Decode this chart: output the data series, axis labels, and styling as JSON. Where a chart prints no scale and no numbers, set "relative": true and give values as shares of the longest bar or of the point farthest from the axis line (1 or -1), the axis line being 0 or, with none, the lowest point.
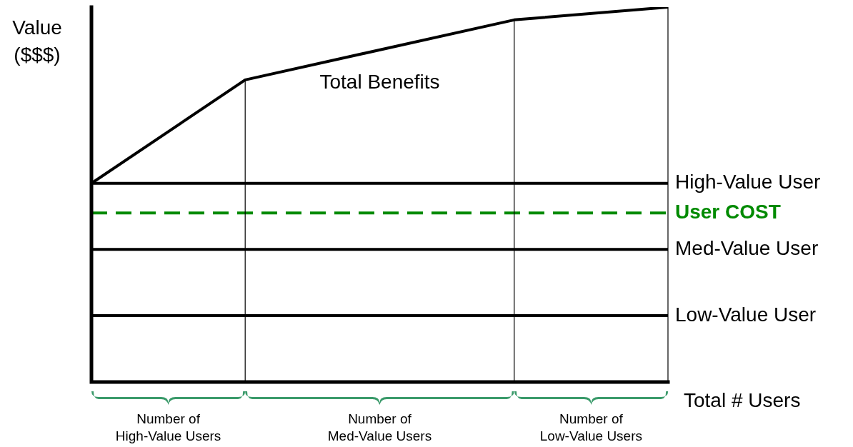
{
  "chart_data": {
    "type": "line",
    "relative": true,
    "ylabel": "Value ($$$)",
    "xlabel": "Total # Users",
    "categories": [
      null,
      null,
      null,
      null,
      null,
      null,
      null,
      null,
      null,
      null,
      null,
      null,
      null,
      null,
      null,
      null
    ],
    "series": [
      {
        "name": "Total Benefits",
        "color": "#000000",
        "values": [
          0.53,
          null,
          null,
          null,
          0.806,
          null,
          null,
          null,
          null,
          null,
          null,
          0.966,
          null,
          null,
          null,
          1.0
        ],
        "line_style": "solid"
      },
      {
        "name": "High-Value User",
        "color": "#000000",
        "values": [
          0.53,
          0.53,
          0.53,
          0.53,
          0.53,
          0.53,
          0.53,
          0.53,
          0.53,
          0.53,
          0.53,
          0.53,
          0.53,
          0.53,
          0.53,
          0.53
        ],
        "line_style": "solid"
      },
      {
        "name": "User COST",
        "color": "#008a00",
        "values": [
          0.451,
          0.451,
          0.451,
          0.451,
          0.451,
          0.451,
          0.451,
          0.451,
          0.451,
          0.451,
          0.451,
          0.451,
          0.451,
          0.451,
          0.451,
          0.451
        ],
        "line_style": "dashed"
      },
      {
        "name": "Med-Value User",
        "color": "#000000",
        "values": [
          0.354,
          0.354,
          0.354,
          0.354,
          0.354,
          0.354,
          0.354,
          0.354,
          0.354,
          0.354,
          0.354,
          0.354,
          0.354,
          0.354,
          0.354,
          0.354
        ],
        "line_style": "solid"
      },
      {
        "name": "Low-Value User",
        "color": "#000000",
        "values": [
          0.177,
          0.177,
          0.177,
          0.177,
          0.177,
          0.177,
          0.177,
          0.177,
          0.177,
          0.177,
          0.177,
          0.177,
          0.177,
          0.177,
          0.177,
          0.177
        ],
        "line_style": "solid"
      }
    ],
    "annotations": [
      "Number of\nHigh-Value Users",
      "Number of\nMed-Value Users",
      "Number of\nLow-Value Users"
    ]
  }
}
